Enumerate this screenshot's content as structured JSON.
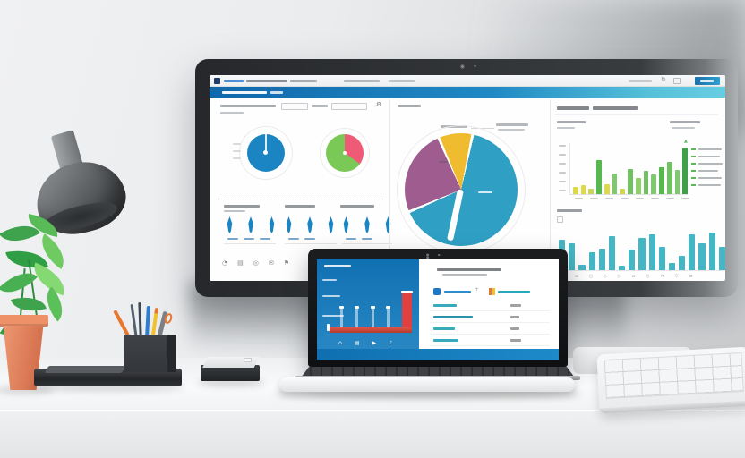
{
  "scene": {
    "wall_color": "#e8eaec",
    "desk_color": "#f2f3f4",
    "accent_blue": "#1b84c2"
  },
  "monitor": {
    "browser": {
      "favicon_color": "#1d3a66",
      "reload_icon": "↻",
      "action_button_color": "#2f9fd0"
    },
    "header": {
      "gradient_from": "#1068ac",
      "gradient_to": "#68cde2",
      "icon_count": 5
    },
    "dashboard": {
      "left_footer_icons": [
        "◔",
        "▤",
        "◎",
        "✉",
        "⚑"
      ],
      "right_footer_icons": [
        "✓",
        "▫",
        "○",
        "◇",
        "▷",
        "▫",
        "○",
        "✕",
        "▽",
        "≡"
      ],
      "legend_marker": "▲",
      "legend_row_count": 6
    }
  },
  "laptop": {
    "panel_blue": "#1070b2",
    "footer_blue": "#1e8ac9",
    "legend_blue": "#1d78c1",
    "legend_orange": "#e8762c",
    "legend_yellow": "#f2c12e",
    "table_teal": "#2aa7b8",
    "legend_plus": "+",
    "dock_icons": [
      "⌂",
      "▤",
      "▶",
      "♪"
    ],
    "table_row_count": 4
  },
  "chart_data": {
    "monitor_donut_blue": {
      "type": "pie",
      "from": 0,
      "slices": [
        {
          "color": "#1b84c2",
          "value": 100
        }
      ]
    },
    "monitor_pie_green_pink": {
      "type": "pie",
      "from": 0,
      "slices": [
        {
          "color": "#ef5a76",
          "value": 35
        },
        {
          "color": "#7ac855",
          "value": 65
        }
      ]
    },
    "monitor_pie_large": {
      "type": "pie",
      "from": 338,
      "slices": [
        {
          "color": "#eebc2e",
          "value": 9.0
        },
        {
          "color": "#ffffff",
          "value": 0.8
        },
        {
          "color": "#2f9fc4",
          "value": 64.5
        },
        {
          "color": "#ffffff",
          "value": 0.8
        },
        {
          "color": "#9e5d8e",
          "value": 24.1
        },
        {
          "color": "#ffffff",
          "value": 0.8
        }
      ]
    },
    "monitor_bars_green": {
      "type": "bar",
      "values": [
        14,
        18,
        11,
        66,
        20,
        41,
        11,
        50,
        32,
        45,
        39,
        52,
        64,
        48,
        91
      ],
      "colors": [
        "#ddd94d",
        "#ddd94d",
        "#cbd455",
        "#56b84e",
        "#ddd94d",
        "#7ec96f",
        "#d4d557",
        "#6fc25f",
        "#8fd06a",
        "#6fc25f",
        "#7ec96f",
        "#56b84e",
        "#6fc25f",
        "#7ec96f",
        "#3f9f4a"
      ]
    },
    "monitor_bars_teal": {
      "type": "bar",
      "color": "#45b6c4",
      "values": [
        68,
        60,
        12,
        40,
        48,
        76,
        10,
        46,
        72,
        80,
        52,
        16,
        32,
        80,
        60,
        84,
        52
      ]
    },
    "monitor_funnel_drops": {
      "type": "icon-row",
      "count": 3,
      "color": "#1b84c2"
    },
    "laptop_bars_red": {
      "type": "bar",
      "values": [
        58,
        58,
        58,
        58,
        100
      ],
      "colors": [
        "rgba(255,255,255,0.5)",
        "rgba(255,255,255,0.5)",
        "rgba(255,255,255,0.5)",
        "rgba(255,255,255,0.5)",
        "#e04040"
      ]
    }
  }
}
